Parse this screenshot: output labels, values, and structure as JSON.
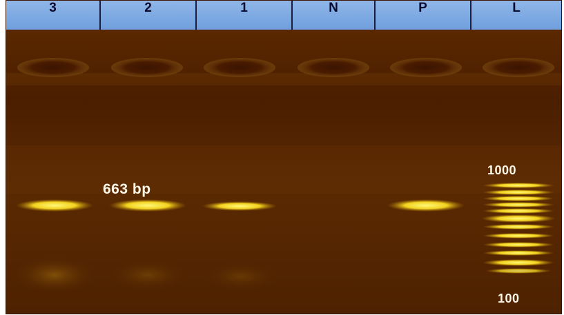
{
  "lanes": [
    "3",
    "2",
    "1",
    "N",
    "P",
    "L"
  ],
  "band_label": "663 bp",
  "ladder_top_label": "1000",
  "ladder_bottom_label": "100",
  "colors": {
    "header": "#7ba7e2",
    "gel": "#4a1d00",
    "band": "#ffe84a"
  }
}
